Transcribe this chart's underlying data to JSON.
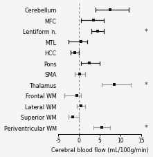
{
  "categories": [
    "Cerebellum",
    "MFC",
    "Lentiform n.",
    "MTL",
    "HCC",
    "Pons",
    "SMA",
    "Thalamus",
    "Frontal WM",
    "Lateral WM",
    "Superior WM",
    "Periventricular WM"
  ],
  "means": [
    7.5,
    3.5,
    4.5,
    0.5,
    -1.0,
    2.5,
    0.2,
    8.5,
    -0.5,
    0.5,
    -1.5,
    5.5
  ],
  "ci_low": [
    4.0,
    0.5,
    3.0,
    -2.5,
    -2.0,
    0.5,
    -1.0,
    5.5,
    -3.5,
    -0.5,
    -2.5,
    3.5
  ],
  "ci_high": [
    12.0,
    6.0,
    6.0,
    2.0,
    0.0,
    5.0,
    1.5,
    12.5,
    0.5,
    1.5,
    0.0,
    7.5
  ],
  "gray_rows": [
    6,
    7,
    8,
    9,
    10,
    11
  ],
  "star_rows": [
    2,
    7,
    11
  ],
  "xlim": [
    -5,
    15
  ],
  "xticks": [
    -5,
    0,
    5,
    10,
    15
  ],
  "xlabel": "Cerebral blood flow (mL/100g/min)",
  "vline_x": 0,
  "color_black": "#111111",
  "color_gray": "#999999",
  "bg_color": "#f5f5f5",
  "marker_color": "#111111",
  "star_color": "#333333",
  "font_size_labels": 5.8,
  "font_size_xlabel": 5.8,
  "font_size_ticks": 5.5,
  "font_size_star": 7.0
}
